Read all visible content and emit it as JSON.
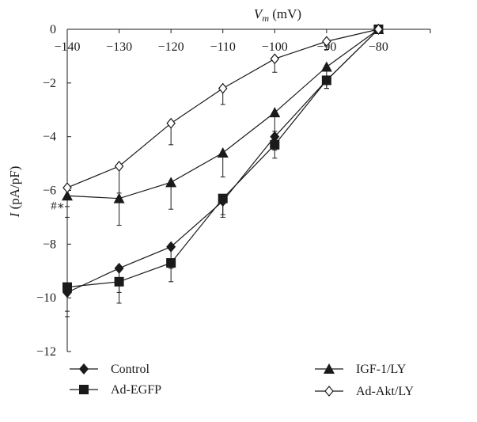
{
  "chart_data": {
    "type": "line",
    "title": "",
    "xlabel_var": "V",
    "xlabel_sub": "m",
    "xlabel_unit": " (mV)",
    "ylabel_var": "I",
    "ylabel_unit": " (pA/pF)",
    "x_ticks": [
      -140,
      -130,
      -120,
      -110,
      -100,
      -90,
      -80
    ],
    "x_tick_labels": [
      "−140",
      "−130",
      "−120",
      "−110",
      "−100",
      "−90",
      "−80"
    ],
    "y_ticks": [
      0,
      -2,
      -4,
      -6,
      -8,
      -10,
      -12
    ],
    "y_tick_labels": [
      "0",
      "−2",
      "−4",
      "−6",
      "−8",
      "−10",
      "−12"
    ],
    "xlim": [
      -140,
      -70
    ],
    "ylim": [
      -12,
      0
    ],
    "grid": false,
    "legend_position": "bottom",
    "annotation": "#∗",
    "annotation_x": -140,
    "annotation_y": -6.5,
    "x": [
      -140,
      -130,
      -120,
      -110,
      -100,
      -90,
      -80
    ],
    "series": [
      {
        "name": "Control",
        "marker": "filled-diamond",
        "values": [
          -9.8,
          -8.9,
          -8.1,
          -6.4,
          -4.0,
          -1.9,
          0
        ],
        "error": [
          0.9,
          0.9,
          0.8,
          0.6,
          0.5,
          0.3,
          0
        ]
      },
      {
        "name": "Ad-EGFP",
        "marker": "filled-square",
        "values": [
          -9.6,
          -9.4,
          -8.7,
          -6.3,
          -4.3,
          -1.9,
          0
        ],
        "error": [
          0.9,
          0.8,
          0.7,
          0.6,
          0.5,
          0.3,
          0
        ]
      },
      {
        "name": "IGF-1/LY",
        "marker": "filled-triangle",
        "values": [
          -6.2,
          -6.3,
          -5.7,
          -4.6,
          -3.1,
          -1.4,
          0
        ],
        "error": [
          0.8,
          1.0,
          1.0,
          0.9,
          0.7,
          0.5,
          0
        ]
      },
      {
        "name": "Ad-Akt/LY",
        "marker": "open-diamond",
        "values": [
          -5.9,
          -5.1,
          -3.5,
          -2.2,
          -1.1,
          -0.45,
          0
        ],
        "error": [
          0.7,
          1.0,
          0.8,
          0.6,
          0.5,
          0.3,
          0
        ]
      }
    ],
    "colors": {
      "line": "#1a1a1a",
      "background": "#ffffff"
    }
  }
}
